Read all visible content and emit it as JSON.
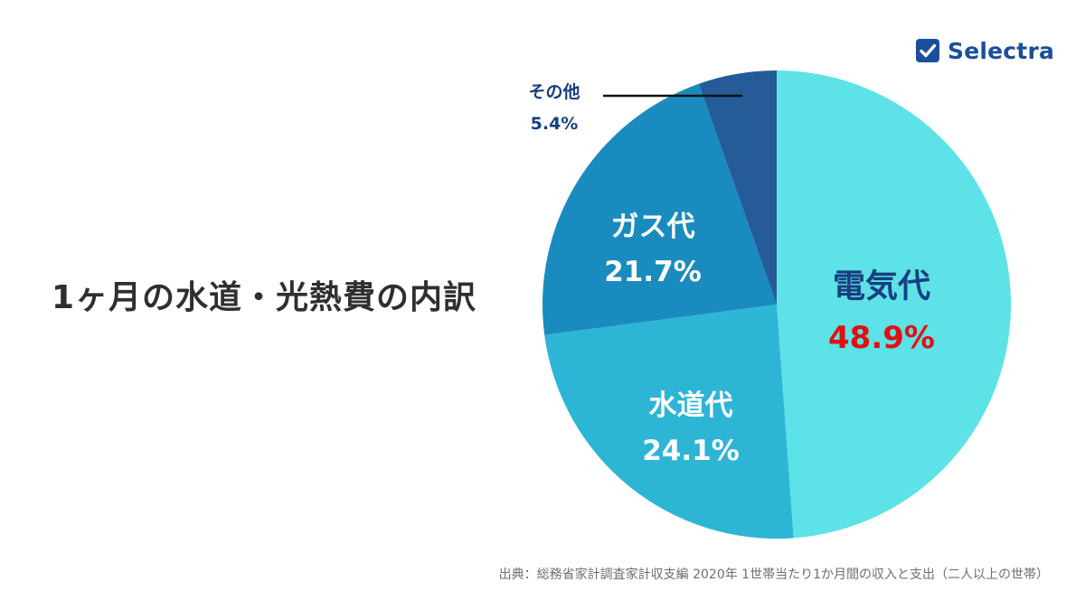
{
  "title": "1ヶ月の水道・光熱費の内訳",
  "brand": {
    "name": "Selectra",
    "icon": "checkbox-icon",
    "color": "#1a4f99"
  },
  "source": "出典：総務省家計調査家計収支編 2020年 1世帯当たり1か月間の収入と支出（二人以上の世帯）",
  "chart_data": {
    "type": "pie",
    "title": "",
    "unit": "%",
    "slices": [
      {
        "label": "電気代",
        "value": 48.9,
        "value_label": "48.9%",
        "color": "#5ce2e7",
        "label_color": "#173f80",
        "value_color": "#e01010"
      },
      {
        "label": "水道代",
        "value": 24.1,
        "value_label": "24.1%",
        "color": "#2db5d6",
        "label_color": "#ffffff",
        "value_color": "#ffffff"
      },
      {
        "label": "ガス代",
        "value": 21.7,
        "value_label": "21.7%",
        "color": "#1a8bbf",
        "label_color": "#ffffff",
        "value_color": "#ffffff"
      },
      {
        "label": "その他",
        "value": 5.4,
        "value_label": "5.4%",
        "color": "#265b9a",
        "label_color": "#173f80",
        "value_color": "#173f80"
      }
    ]
  }
}
